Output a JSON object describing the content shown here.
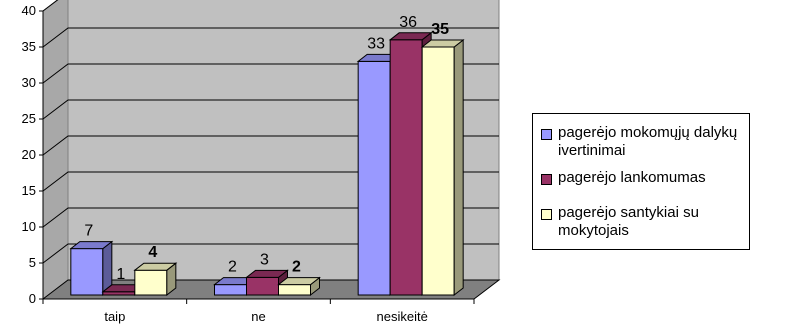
{
  "chart_data": {
    "type": "bar",
    "style": "3d-clustered",
    "categories": [
      "taip",
      "ne",
      "nesikeitė"
    ],
    "series": [
      {
        "name": "pagerėjo mokomųjų dalykų ivertinimai",
        "values": [
          7,
          2,
          33
        ],
        "color": "#9999FF",
        "label_bold": false
      },
      {
        "name": "pagerėjo lankomumas",
        "values": [
          1,
          3,
          36
        ],
        "color": "#993366",
        "label_bold": false
      },
      {
        "name": "pagerėjo santykiai su mokytojais",
        "values": [
          4,
          2,
          35
        ],
        "color": "#FFFFCC",
        "label_bold": true
      }
    ],
    "ylim": [
      0,
      40
    ],
    "yticks": [
      0,
      5,
      10,
      15,
      20,
      25,
      30,
      35,
      40
    ],
    "grid": true,
    "legend": "right",
    "wall_color": "#C0C0C0",
    "floor_color": "#808080"
  }
}
